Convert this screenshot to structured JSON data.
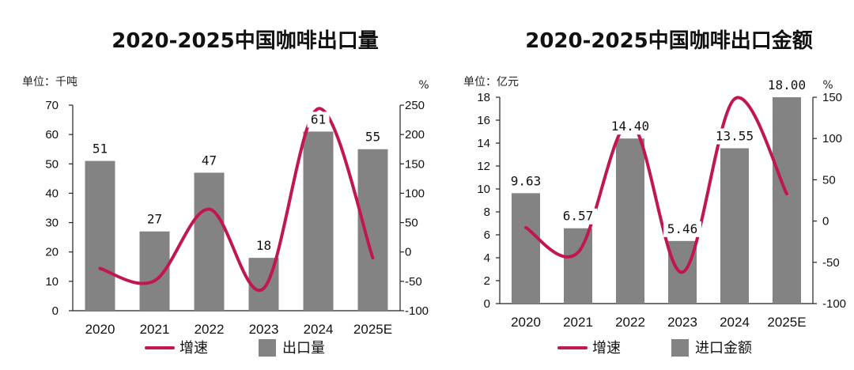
{
  "chart_data": [
    {
      "type": "bar",
      "title": "2020-2025中国咖啡出口量",
      "left_unit_label": "单位：千吨",
      "right_unit_label": "%",
      "categories": [
        "2020",
        "2021",
        "2022",
        "2023",
        "2024",
        "2025E"
      ],
      "series": [
        {
          "name": "出口量",
          "type": "bar",
          "axis": "left",
          "values": [
            51,
            27,
            47,
            18,
            61,
            55
          ],
          "labels": [
            "51",
            "27",
            "47",
            "18",
            "61",
            "55"
          ]
        },
        {
          "name": "增速",
          "type": "line",
          "axis": "right",
          "values": [
            -28,
            -49,
            73,
            -62,
            244,
            -10
          ]
        }
      ],
      "left_axis": {
        "ylim": [
          0,
          70
        ],
        "ticks": [
          0,
          10,
          20,
          30,
          40,
          50,
          60,
          70
        ]
      },
      "right_axis": {
        "ylim": [
          -100,
          250
        ],
        "ticks": [
          -100,
          -50,
          0,
          50,
          100,
          150,
          200,
          250
        ]
      },
      "legend": [
        {
          "label": "增速",
          "kind": "line"
        },
        {
          "label": "出口量",
          "kind": "bar"
        }
      ],
      "legend_position": "bottom"
    },
    {
      "type": "bar",
      "title": "2020-2025中国咖啡出口金额",
      "left_unit_label": "单位：亿元",
      "right_unit_label": "%",
      "categories": [
        "2020",
        "2021",
        "2022",
        "2023",
        "2024",
        "2025E"
      ],
      "series": [
        {
          "name": "进口金额",
          "type": "bar",
          "axis": "left",
          "values": [
            9.63,
            6.57,
            14.4,
            5.46,
            13.55,
            18.0
          ],
          "labels": [
            "9.63",
            "6.57",
            "14.40",
            "5.46",
            "13.55",
            "18.00"
          ]
        },
        {
          "name": "增速",
          "type": "line",
          "axis": "right",
          "values": [
            -8,
            -38,
            119,
            -62,
            148,
            33
          ]
        }
      ],
      "left_axis": {
        "ylim": [
          0,
          18
        ],
        "ticks": [
          0,
          2,
          4,
          6,
          8,
          10,
          12,
          14,
          16,
          18
        ]
      },
      "right_axis": {
        "ylim": [
          -100,
          150
        ],
        "ticks": [
          -100,
          -50,
          0,
          50,
          100,
          150
        ]
      },
      "legend": [
        {
          "label": "增速",
          "kind": "line"
        },
        {
          "label": "进口金额",
          "kind": "bar"
        }
      ],
      "legend_position": "bottom"
    }
  ],
  "colors": {
    "bar": "#838383",
    "line": "#c2174d"
  }
}
